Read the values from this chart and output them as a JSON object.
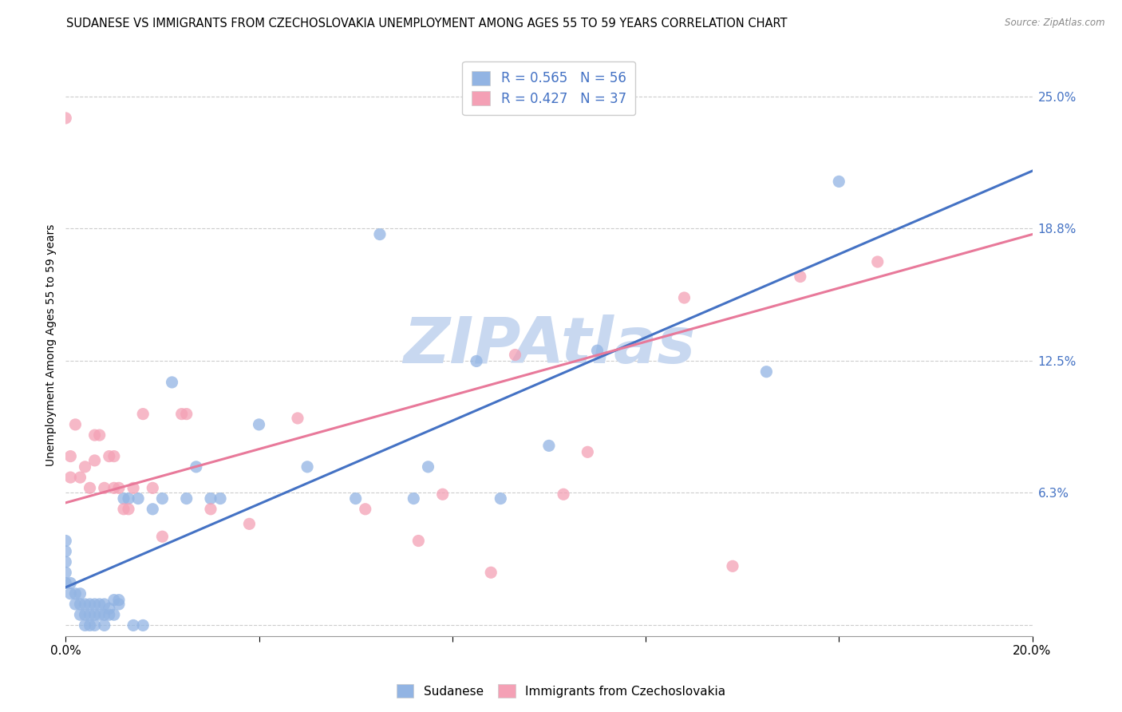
{
  "title": "SUDANESE VS IMMIGRANTS FROM CZECHOSLOVAKIA UNEMPLOYMENT AMONG AGES 55 TO 59 YEARS CORRELATION CHART",
  "source": "Source: ZipAtlas.com",
  "ylabel": "Unemployment Among Ages 55 to 59 years",
  "xlim": [
    0.0,
    0.2
  ],
  "ylim": [
    -0.005,
    0.27
  ],
  "xticks": [
    0.0,
    0.04,
    0.08,
    0.12,
    0.16,
    0.2
  ],
  "xticklabels": [
    "0.0%",
    "",
    "",
    "",
    "",
    "20.0%"
  ],
  "ytick_positions": [
    0.0,
    0.063,
    0.125,
    0.188,
    0.25
  ],
  "ytick_labels": [
    "",
    "6.3%",
    "12.5%",
    "18.8%",
    "25.0%"
  ],
  "watermark": "ZIPAtlas",
  "blue_R": "0.565",
  "blue_N": "56",
  "pink_R": "0.427",
  "pink_N": "37",
  "blue_color": "#92b4e3",
  "pink_color": "#f4a0b5",
  "blue_line_color": "#4472c4",
  "pink_line_color": "#e8799a",
  "blue_scatter_x": [
    0.0,
    0.0,
    0.0,
    0.0,
    0.0,
    0.001,
    0.001,
    0.002,
    0.002,
    0.003,
    0.003,
    0.003,
    0.004,
    0.004,
    0.004,
    0.005,
    0.005,
    0.005,
    0.006,
    0.006,
    0.006,
    0.007,
    0.007,
    0.008,
    0.008,
    0.008,
    0.009,
    0.009,
    0.01,
    0.01,
    0.011,
    0.011,
    0.012,
    0.013,
    0.014,
    0.015,
    0.016,
    0.018,
    0.02,
    0.022,
    0.025,
    0.027,
    0.03,
    0.032,
    0.04,
    0.05,
    0.06,
    0.065,
    0.072,
    0.075,
    0.085,
    0.09,
    0.1,
    0.11,
    0.145,
    0.16
  ],
  "blue_scatter_y": [
    0.02,
    0.025,
    0.03,
    0.035,
    0.04,
    0.015,
    0.02,
    0.01,
    0.015,
    0.005,
    0.01,
    0.015,
    0.0,
    0.005,
    0.01,
    0.0,
    0.005,
    0.01,
    0.0,
    0.005,
    0.01,
    0.005,
    0.01,
    0.0,
    0.005,
    0.01,
    0.005,
    0.008,
    0.005,
    0.012,
    0.01,
    0.012,
    0.06,
    0.06,
    0.0,
    0.06,
    0.0,
    0.055,
    0.06,
    0.115,
    0.06,
    0.075,
    0.06,
    0.06,
    0.095,
    0.075,
    0.06,
    0.185,
    0.06,
    0.075,
    0.125,
    0.06,
    0.085,
    0.13,
    0.12,
    0.21
  ],
  "pink_scatter_x": [
    0.0,
    0.001,
    0.001,
    0.002,
    0.003,
    0.004,
    0.005,
    0.006,
    0.006,
    0.007,
    0.008,
    0.009,
    0.01,
    0.01,
    0.011,
    0.012,
    0.013,
    0.014,
    0.016,
    0.018,
    0.02,
    0.024,
    0.025,
    0.03,
    0.038,
    0.048,
    0.062,
    0.073,
    0.078,
    0.088,
    0.093,
    0.103,
    0.108,
    0.128,
    0.138,
    0.152,
    0.168
  ],
  "pink_scatter_y": [
    0.24,
    0.07,
    0.08,
    0.095,
    0.07,
    0.075,
    0.065,
    0.078,
    0.09,
    0.09,
    0.065,
    0.08,
    0.065,
    0.08,
    0.065,
    0.055,
    0.055,
    0.065,
    0.1,
    0.065,
    0.042,
    0.1,
    0.1,
    0.055,
    0.048,
    0.098,
    0.055,
    0.04,
    0.062,
    0.025,
    0.128,
    0.062,
    0.082,
    0.155,
    0.028,
    0.165,
    0.172
  ],
  "blue_trend_x": [
    0.0,
    0.2
  ],
  "blue_trend_y": [
    0.018,
    0.215
  ],
  "pink_trend_x": [
    0.0,
    0.2
  ],
  "pink_trend_y": [
    0.058,
    0.185
  ],
  "legend_label_blue": "Sudanese",
  "legend_label_pink": "Immigrants from Czechoslovakia",
  "background_color": "#ffffff",
  "grid_color": "#cccccc",
  "title_fontsize": 10.5,
  "axis_label_fontsize": 10,
  "tick_fontsize": 11,
  "watermark_color": "#c8d8f0",
  "watermark_fontsize": 58
}
